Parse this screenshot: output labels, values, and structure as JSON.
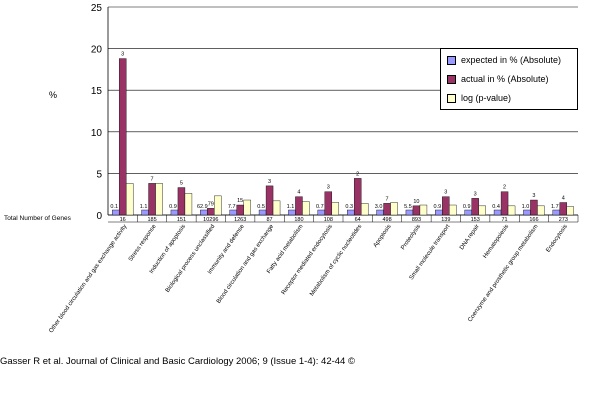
{
  "chart_data": {
    "type": "bar",
    "ylabel": "%",
    "ylim": [
      0,
      25
    ],
    "yticks": [
      0,
      5,
      10,
      15,
      20,
      25
    ],
    "grid": true,
    "legend_position": "top-right",
    "row_label": "Total Number of Genes",
    "categories": [
      "Other blood circulation and gas exchange activity",
      "Stress response",
      "Induction of apoptosis",
      "Biological process unclassified",
      "Immunity and defense",
      "Blood circulation and gas exchange",
      "Fatty acid metabolism",
      "Receptor mediated endocytosis",
      "Metabolism of cyclic nucleotides",
      "Apoptosis",
      "Proteolysis",
      "Small molecule transport",
      "DNA repair",
      "Hematopoiesis",
      "Coenzyme and prosthetic group metabolism",
      "Endocytosis"
    ],
    "total_genes": [
      "16",
      "185",
      "151",
      "10296",
      "1263",
      "87",
      "180",
      "108",
      "64",
      "498",
      "893",
      "139",
      "153",
      "71",
      "166",
      "273"
    ],
    "expected_labels": [
      "0.1",
      "1.1",
      "0.9",
      "62.9",
      "7.7",
      "0.5",
      "1.1",
      "0.7",
      "0.3",
      "3.0",
      "5.5",
      "0.9",
      "0.9",
      "0.4",
      "1.0",
      "1.7"
    ],
    "actual_labels": [
      "3",
      "7",
      "5",
      "79",
      "15",
      "3",
      "4",
      "3",
      "2",
      "7",
      "10",
      "3",
      "3",
      "2",
      "3",
      "4"
    ],
    "series": [
      {
        "name": "expected in % (Absolute)",
        "color": "#9999ff",
        "values": [
          0.6,
          0.6,
          0.6,
          0.6,
          0.6,
          0.6,
          0.6,
          0.6,
          0.6,
          0.6,
          0.6,
          0.6,
          0.6,
          0.6,
          0.6,
          0.6
        ]
      },
      {
        "name": "actual in % (Absolute)",
        "color": "#993366",
        "values": [
          18.8,
          3.8,
          3.3,
          0.8,
          1.2,
          3.5,
          2.2,
          2.8,
          4.4,
          1.4,
          1.1,
          2.2,
          2.0,
          2.8,
          1.8,
          1.5
        ]
      },
      {
        "name": "log (p-value)",
        "color": "#ffffcc",
        "values": [
          3.8,
          3.8,
          2.6,
          2.3,
          1.8,
          1.7,
          1.6,
          1.5,
          1.4,
          1.5,
          1.2,
          1.2,
          1.1,
          1.1,
          1.1,
          1.0
        ]
      }
    ]
  },
  "footer": "Gasser R et al. Journal of Clinical and Basic Cardiology 2006; 9 (Issue 1-4): 42-44 ©"
}
